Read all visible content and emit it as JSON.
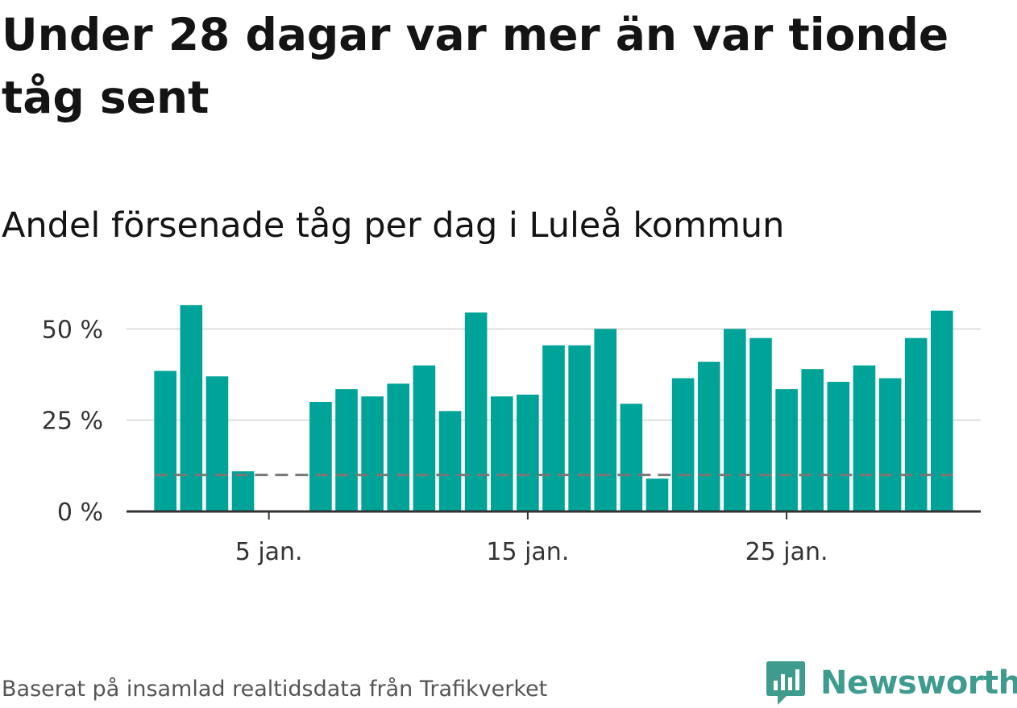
{
  "title": "Under 28 dagar var mer än var tionde tåg sent",
  "subtitle": "Andel försenade tåg per dag i Luleå kommun",
  "footer": {
    "source": "Baserat på insamlad realtidsdata från Trafikverket",
    "brand": "Newsworthy"
  },
  "colors": {
    "bar": "#00a398",
    "reference_line": "#777777",
    "grid": "#dddddd",
    "axis": "#333333",
    "brand": "#3e9b8e"
  },
  "chart_data": {
    "type": "bar",
    "x": [
      1,
      2,
      3,
      4,
      5,
      6,
      7,
      8,
      9,
      10,
      11,
      12,
      13,
      14,
      15,
      16,
      17,
      18,
      19,
      20,
      21,
      22,
      23,
      24,
      25,
      26,
      27,
      28,
      29,
      30,
      31
    ],
    "values": [
      38.5,
      56.5,
      37,
      11,
      0,
      0,
      30,
      33.5,
      31.5,
      35,
      40,
      27.5,
      54.5,
      31.5,
      32,
      45.5,
      45.5,
      50,
      29.5,
      9,
      36.5,
      41,
      50,
      47.5,
      33.5,
      39,
      35.5,
      40,
      36.5,
      47.5,
      55
    ],
    "reference_line": 10,
    "unit": "%",
    "xticks": [
      {
        "x": 5,
        "label": "5 jan."
      },
      {
        "x": 15,
        "label": "15 jan."
      },
      {
        "x": 25,
        "label": "25 jan."
      }
    ],
    "yticks": [
      {
        "y": 0,
        "label": "0 %"
      },
      {
        "y": 25,
        "label": "25 %"
      },
      {
        "y": 50,
        "label": "50 %"
      }
    ],
    "ylim": [
      0,
      60
    ],
    "xlim": [
      -0.5,
      32.5
    ],
    "grid": true
  }
}
